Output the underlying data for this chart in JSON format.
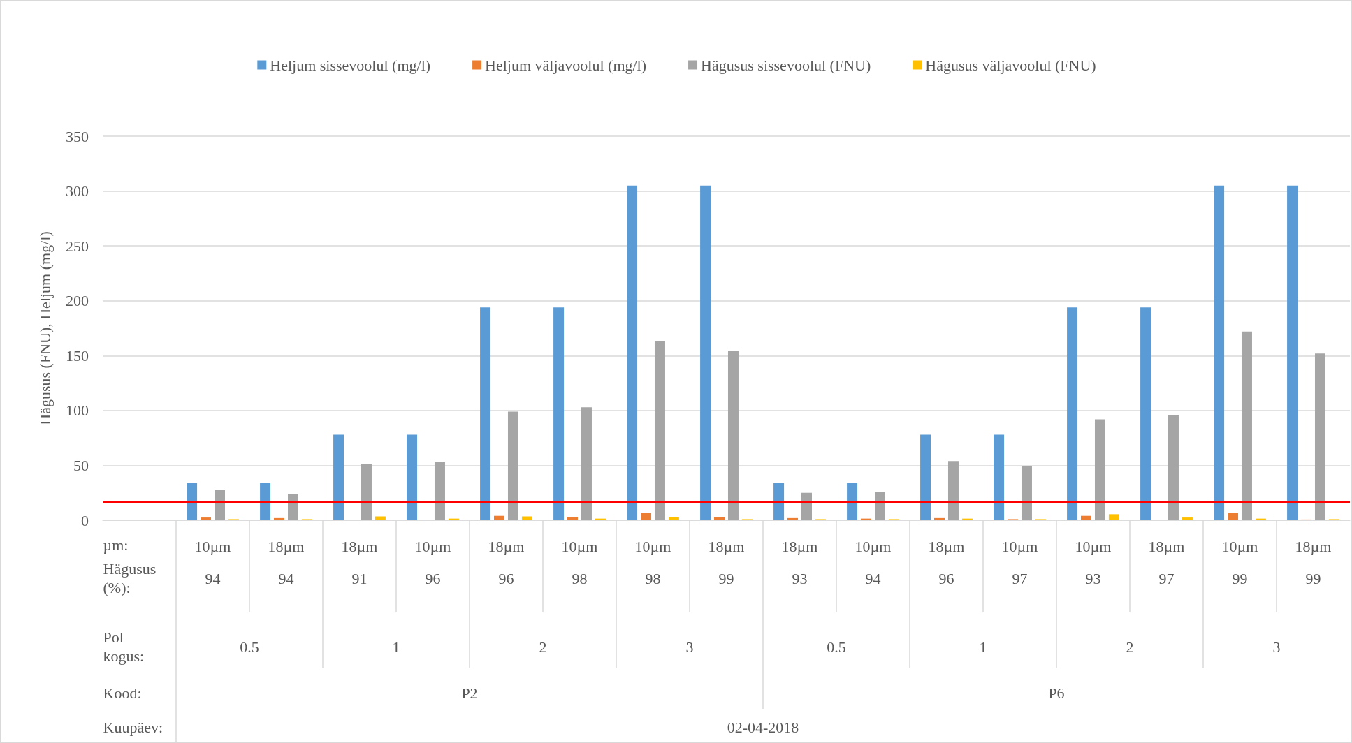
{
  "chart_data": {
    "type": "bar",
    "ylabel": "Hägusus (FNU), Heljum (mg/l)",
    "categories": [
      null,
      "10µm",
      "18µm",
      "18µm",
      "10µm",
      "18µm",
      "10µm",
      "10µm",
      "18µm",
      "18µm",
      "10µm",
      "18µm",
      "10µm",
      "10µm",
      "18µm",
      "10µm",
      "18µm"
    ],
    "series": [
      {
        "name": "Heljum sissevoolul (mg/l)",
        "color": "#5b9bd5",
        "values": [
          null,
          34,
          34,
          78,
          78,
          194,
          194,
          305,
          305,
          34,
          34,
          78,
          78,
          194,
          194,
          305,
          305
        ]
      },
      {
        "name": "Heljum väljavoolul (mg/l)",
        "color": "#ed7d31",
        "values": [
          null,
          2.5,
          2,
          0,
          0,
          4,
          3,
          7,
          3,
          2,
          1.5,
          2,
          1,
          4,
          0,
          6.5,
          0.7
        ]
      },
      {
        "name": "Hägusus sissevoolul (FNU)",
        "color": "#a5a5a5",
        "values": [
          null,
          27.5,
          24,
          51,
          53,
          99,
          103,
          163,
          154,
          25,
          26,
          54,
          49,
          92,
          96,
          172,
          152
        ]
      },
      {
        "name": "Hägusus väljavoolul (FNU)",
        "color": "#ffc000",
        "values": [
          null,
          1,
          1,
          3.5,
          1.5,
          3.5,
          1.5,
          3,
          1,
          1,
          1,
          1.5,
          1,
          5.5,
          2.5,
          1.5,
          1
        ]
      }
    ],
    "ylim": [
      0,
      350
    ],
    "yticks": [
      0,
      50,
      100,
      150,
      200,
      250,
      300,
      350
    ],
    "grid": "y",
    "legend": "top",
    "ref_lines": [
      {
        "axis": "y",
        "value": 17,
        "label": null,
        "color": "#ff0000"
      }
    ],
    "annotations": [
      "µm:",
      "Hägusus\n(%):",
      "Pol\nkogus:",
      "Kood:",
      "Kuupäev:",
      "94",
      "94",
      "91",
      "96",
      "96",
      "98",
      "98",
      "99",
      "93",
      "94",
      "96",
      "97",
      "93",
      "97",
      "99",
      "99",
      "0.5",
      "1",
      "2",
      "3",
      "0.5",
      "1",
      "2",
      "3",
      "P2",
      "P6",
      "02-04-2018"
    ]
  }
}
